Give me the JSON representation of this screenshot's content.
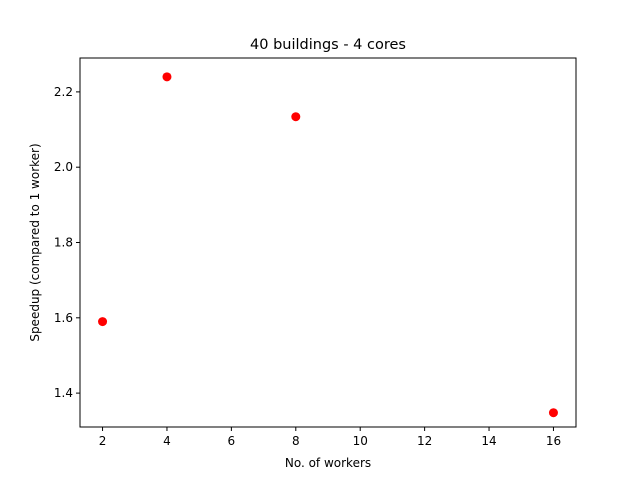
{
  "chart_data": {
    "type": "scatter",
    "title": "40 buildings - 4 cores",
    "xlabel": "No. of workers",
    "ylabel": "Speedup (compared to 1 worker)",
    "xlim": [
      1.3,
      16.7
    ],
    "ylim": [
      1.31,
      2.29
    ],
    "xticks": [
      2,
      4,
      6,
      8,
      10,
      12,
      14,
      16
    ],
    "yticks": [
      1.4,
      1.6,
      1.8,
      2.0,
      2.2
    ],
    "ytick_labels": [
      "1.4",
      "1.6",
      "1.8",
      "2.0",
      "2.2"
    ],
    "grid": false,
    "marker_color": "#ff0000",
    "series": [
      {
        "x": [
          2,
          4,
          8,
          16
        ],
        "values": [
          1.59,
          2.24,
          2.134,
          1.348
        ]
      }
    ]
  }
}
